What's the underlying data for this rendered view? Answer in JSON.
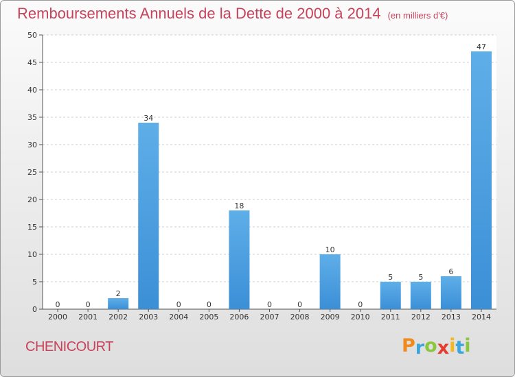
{
  "chart_data": {
    "type": "bar",
    "title": "Remboursements Annuels de la Dette de 2000 à 2014",
    "unit_note": "(en milliers d'€)",
    "categories": [
      "2000",
      "2001",
      "2002",
      "2003",
      "2004",
      "2005",
      "2006",
      "2007",
      "2008",
      "2009",
      "2010",
      "2011",
      "2012",
      "2013",
      "2014"
    ],
    "values": [
      0,
      0,
      2,
      34,
      0,
      0,
      18,
      0,
      0,
      10,
      0,
      5,
      5,
      6,
      47
    ],
    "ylim": [
      0,
      50
    ],
    "yticks": [
      0,
      5,
      10,
      15,
      20,
      25,
      30,
      35,
      40,
      45,
      50
    ],
    "grid": true,
    "bar_color": "#3b8fd6"
  },
  "commune": "CHENICOURT",
  "brand": {
    "letters": [
      "P",
      "r",
      "o",
      "x",
      "i",
      "t",
      "i"
    ],
    "colors": [
      "#f08a1c",
      "#39a6dc",
      "#8bc63f",
      "#e53c2f",
      "#f5b81c",
      "#39a6dc",
      "#8bc63f"
    ]
  }
}
